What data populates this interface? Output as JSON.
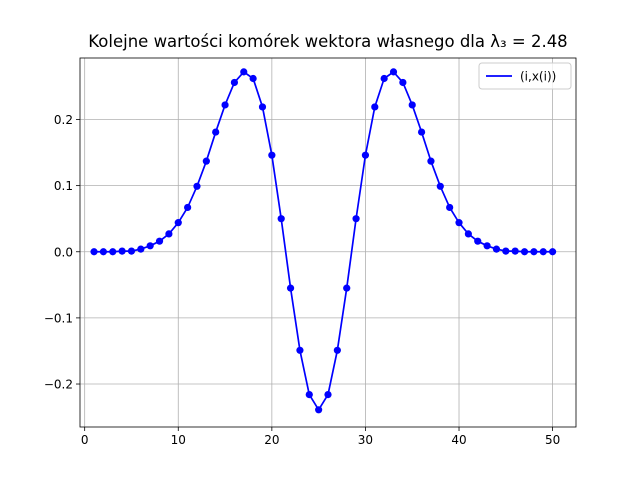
{
  "chart_data": {
    "type": "line",
    "title": "Kolejne wartości komórek wektora własnego dla λ₃ = 2.48",
    "xlabel": "",
    "ylabel": "",
    "xlim": [
      -0.5,
      52.5
    ],
    "ylim": [
      -0.265,
      0.293
    ],
    "xticks": [
      0,
      10,
      20,
      30,
      40,
      50
    ],
    "xtick_labels": [
      "0",
      "10",
      "20",
      "30",
      "40",
      "50"
    ],
    "yticks": [
      -0.2,
      -0.1,
      0.0,
      0.1,
      0.2
    ],
    "ytick_labels": [
      "−0.2",
      "−0.1",
      "0.0",
      "0.1",
      "0.2"
    ],
    "grid": true,
    "legend_position": "top-right",
    "series": [
      {
        "name": "(i,x(i))",
        "color": "#0000ff",
        "marker": "circle",
        "x": [
          1,
          2,
          3,
          4,
          5,
          6,
          7,
          8,
          9,
          10,
          11,
          12,
          13,
          14,
          15,
          16,
          17,
          18,
          19,
          20,
          21,
          22,
          23,
          24,
          25,
          26,
          27,
          28,
          29,
          30,
          31,
          32,
          33,
          34,
          35,
          36,
          37,
          38,
          39,
          40,
          41,
          42,
          43,
          44,
          45,
          46,
          47,
          48,
          49,
          50
        ],
        "y": [
          0.0,
          0.0,
          0.0,
          0.001,
          0.001,
          0.004,
          0.009,
          0.016,
          0.027,
          0.044,
          0.067,
          0.099,
          0.137,
          0.181,
          0.222,
          0.256,
          0.272,
          0.262,
          0.219,
          0.146,
          0.05,
          -0.055,
          -0.149,
          -0.216,
          -0.239,
          -0.216,
          -0.149,
          -0.055,
          0.05,
          0.146,
          0.219,
          0.262,
          0.272,
          0.256,
          0.222,
          0.181,
          0.137,
          0.099,
          0.067,
          0.044,
          0.027,
          0.016,
          0.009,
          0.004,
          0.001,
          0.001,
          0.0,
          0.0,
          0.0,
          0.0
        ]
      }
    ]
  }
}
